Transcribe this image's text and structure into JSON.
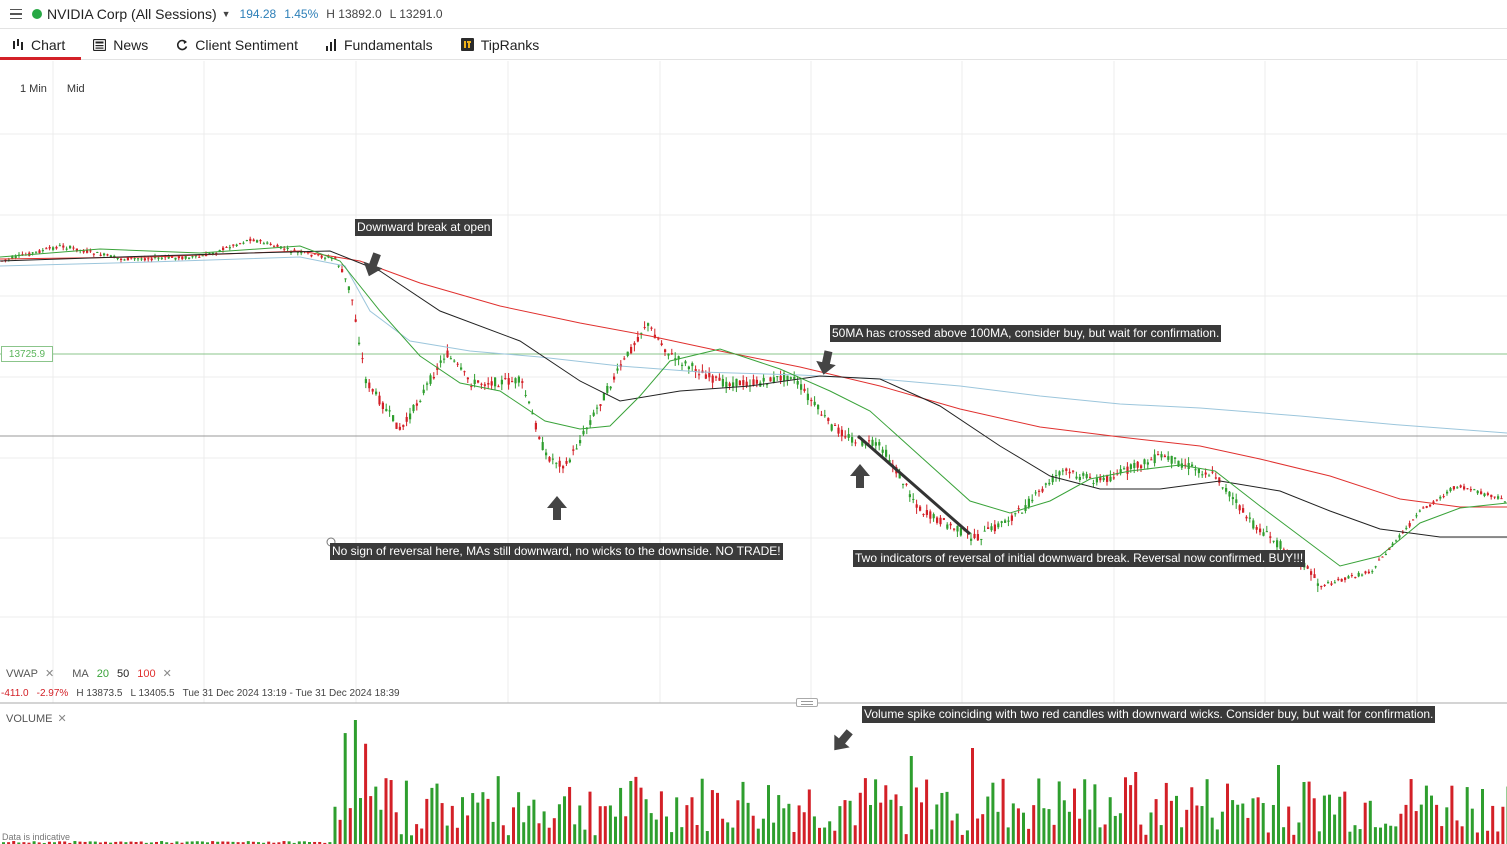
{
  "header": {
    "instrument": "NVIDIA Corp (All Sessions)",
    "last_price": "194.28",
    "change_pct": "1.45%",
    "high": "H 13892.0",
    "low": "L 13291.0",
    "status_color": "#27a844"
  },
  "tabs": [
    {
      "label": "Chart",
      "icon": "chart-icon"
    },
    {
      "label": "News",
      "icon": "news-icon"
    },
    {
      "label": "Client Sentiment",
      "icon": "refresh-icon"
    },
    {
      "label": "Fundamentals",
      "icon": "bar-chart-icon"
    },
    {
      "label": "TipRanks",
      "icon": "tipranks-icon"
    }
  ],
  "timeframe": {
    "interval": "1 Min",
    "price_type": "Mid"
  },
  "price_line_label": "13725.9",
  "annotations": {
    "downward_break": "Downward break at open",
    "no_reversal": "No sign of reversal here, MAs still downward, no wicks to the downside. NO TRADE!",
    "ma_cross": "50MA has crossed above 100MA, consider buy, but wait for confirmation.",
    "reversal_confirmed": "Two indicators of reversal of initial downward break. Reversal now confirmed. BUY!!!",
    "volume_spike": "Volume spike coinciding with two red candles with downward wicks. Consider buy, but wait for confirmation."
  },
  "indicators": {
    "vwap": "VWAP",
    "ma": "MA",
    "ma_periods": [
      "20",
      "50",
      "100"
    ],
    "colors": {
      "up": "#2e9e2e",
      "down": "#d32027",
      "ma20": "#3aa33a",
      "ma50": "#222222",
      "ma100": "#e0312f",
      "vwap": "#9cc6dc"
    }
  },
  "ohlc": {
    "change": "-411.0",
    "change_pct": "-2.97%",
    "high": "H 13873.5",
    "low": "L 13405.5",
    "range": "Tue 31 Dec 2024 13:19 - Tue 31 Dec 2024 18:39"
  },
  "volume": {
    "label": "VOLUME"
  },
  "footer": {
    "indicative": "Data is indicative"
  },
  "close_symbol": "✕"
}
